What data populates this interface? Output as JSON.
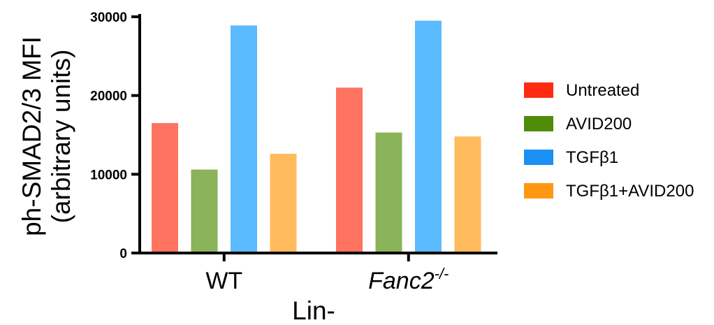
{
  "chart_data": {
    "type": "bar",
    "categories": [
      "WT",
      "Fanc2"
    ],
    "category_superscripts": [
      "",
      "-/-"
    ],
    "category_italic": [
      false,
      true
    ],
    "series": [
      {
        "name": "Untreated",
        "values": [
          16500,
          21000
        ],
        "color": "#ff7361",
        "legend_color": "#ff2a12"
      },
      {
        "name": "AVID200",
        "values": [
          10600,
          15300
        ],
        "color": "#8ab35a",
        "legend_color": "#4f8c08"
      },
      {
        "name": "TGFβ1",
        "values": [
          28900,
          29500
        ],
        "color": "#5cbaff",
        "legend_color": "#1a90f5"
      },
      {
        "name": "TGFβ1+AVID200",
        "values": [
          12600,
          14800
        ],
        "color": "#ffbb5c",
        "legend_color": "#ff9712"
      }
    ],
    "ylim": [
      0,
      30000
    ],
    "yticks": [
      0,
      10000,
      20000,
      30000
    ],
    "ytick_labels": [
      "0",
      "10000",
      "20000",
      "30000"
    ],
    "ylabel_line1": "ph-SMAD2/3 MFI",
    "ylabel_line2": "(arbitrary units)",
    "xlabel": "Lin-",
    "legend_position": "right",
    "grid": false
  }
}
